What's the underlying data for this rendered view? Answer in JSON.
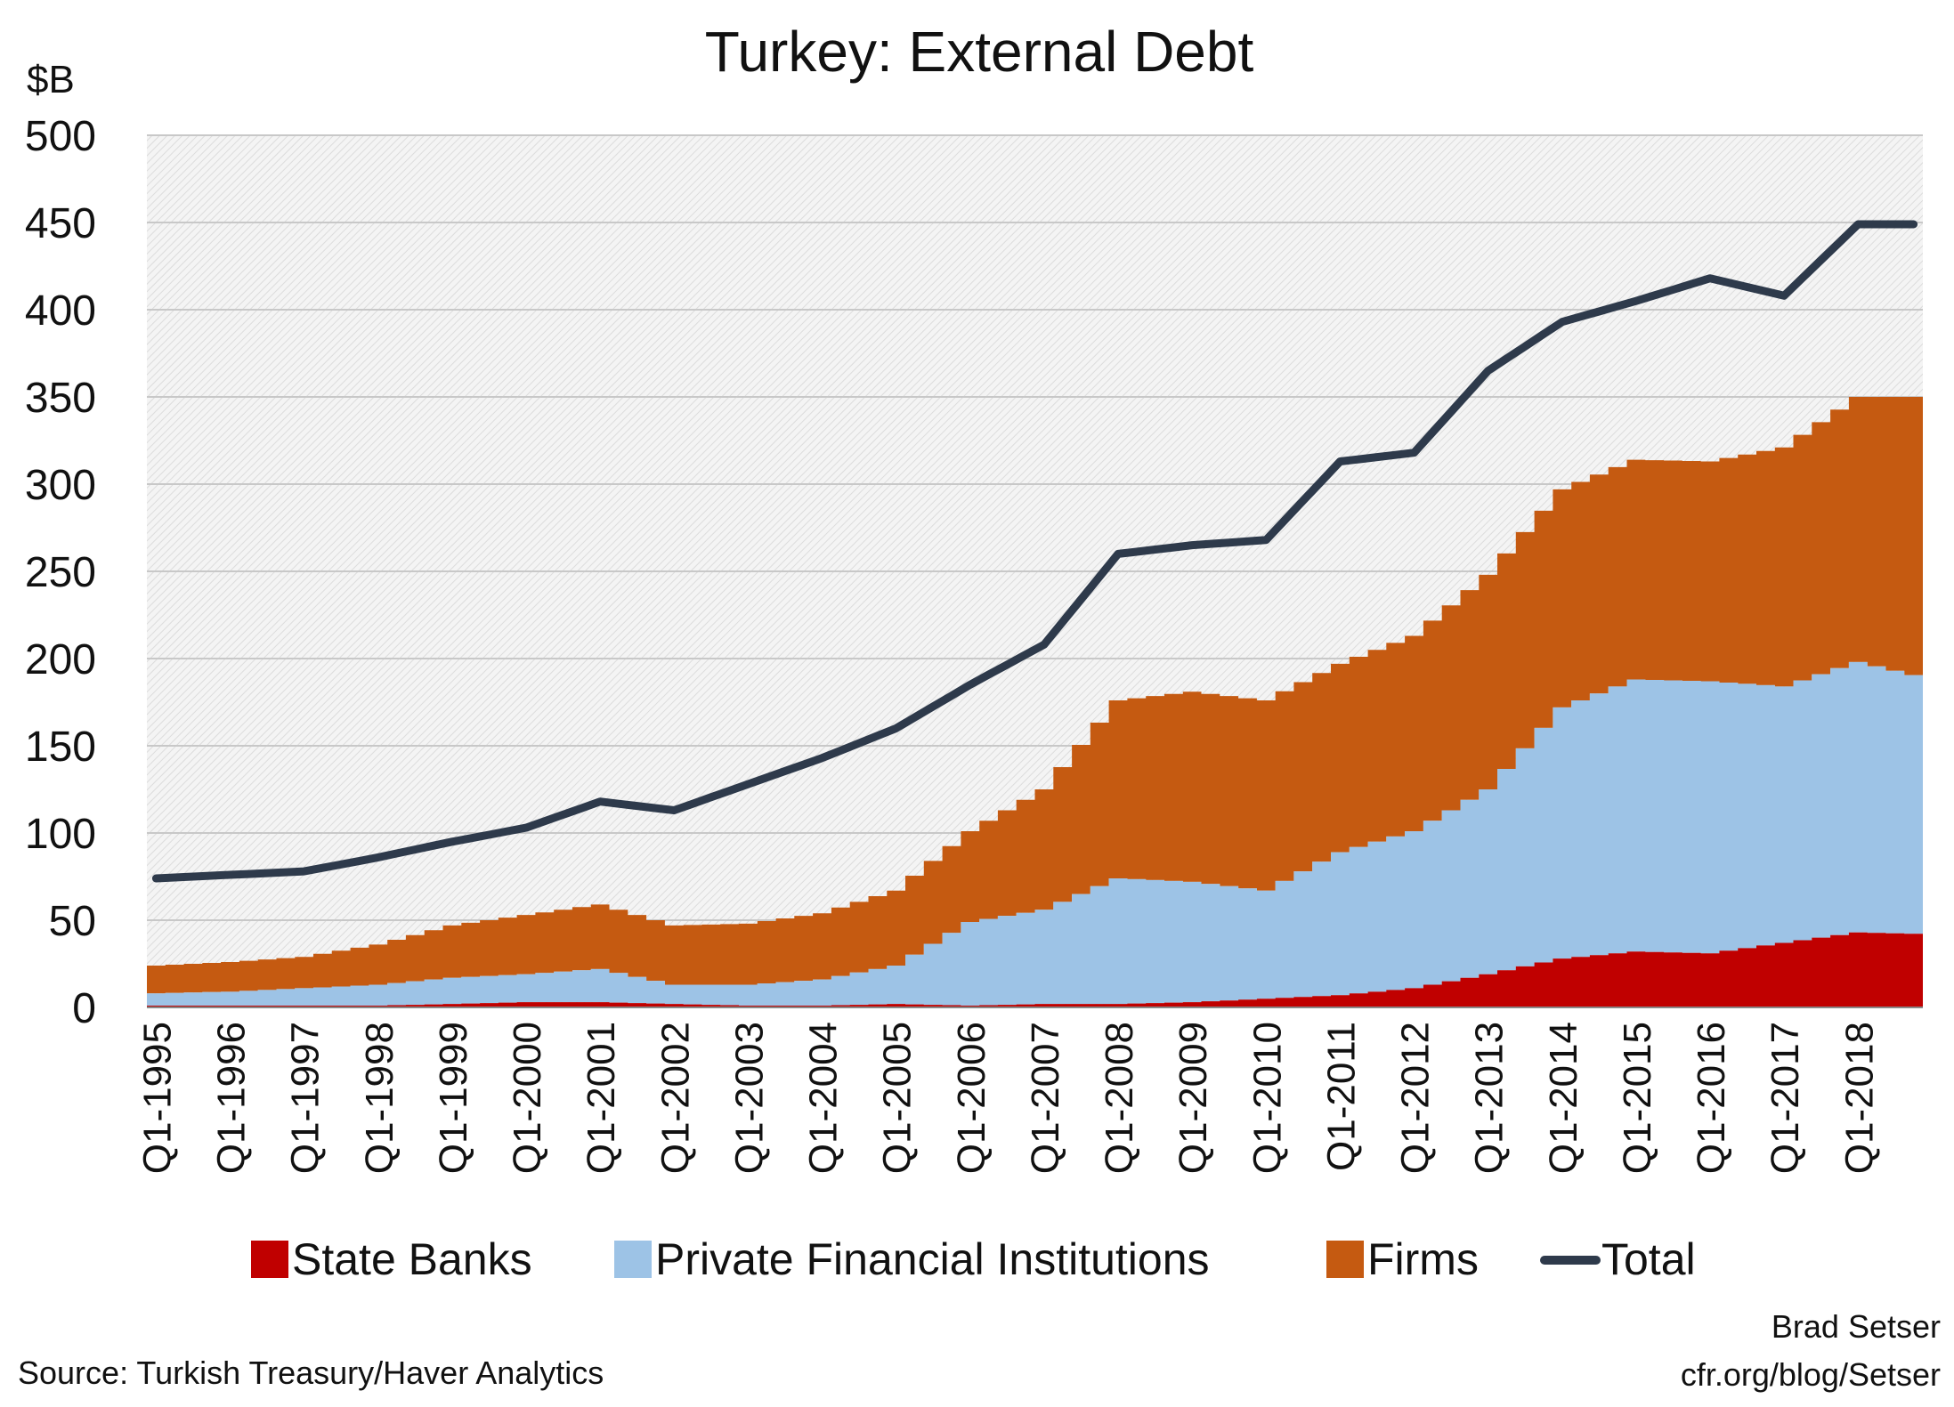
{
  "chart_data": {
    "type": "area",
    "title": "Turkey: External Debt",
    "ylabel": "$B",
    "xlabel": "",
    "ylim": [
      0,
      500
    ],
    "yticks": [
      0,
      50,
      100,
      150,
      200,
      250,
      300,
      350,
      400,
      450,
      500
    ],
    "grid": true,
    "legend_position": "bottom",
    "x_start": "Q1-1995",
    "x_end": "Q4-2018",
    "x_tick_labels": [
      "Q1-1995",
      "Q1-1996",
      "Q1-1997",
      "Q1-1998",
      "Q1-1999",
      "Q1-2000",
      "Q1-2001",
      "Q1-2002",
      "Q1-2003",
      "Q1-2004",
      "Q1-2005",
      "Q1-2006",
      "Q1-2007",
      "Q1-2008",
      "Q1-2009",
      "Q1-2010",
      "Q1-2011",
      "Q1-2012",
      "Q1-2013",
      "Q1-2014",
      "Q1-2015",
      "Q1-2016",
      "Q1-2017",
      "Q1-2018"
    ],
    "year_anchors": {
      "years": [
        1995,
        1996,
        1997,
        1998,
        1999,
        2000,
        2001,
        2002,
        2003,
        2004,
        2005,
        2006,
        2007,
        2008,
        2009,
        2010,
        2011,
        2012,
        2013,
        2014,
        2015,
        2016,
        2017,
        2018,
        2019
      ],
      "state_banks": [
        1,
        1,
        1,
        1,
        2,
        3,
        3,
        2,
        1,
        1,
        2,
        1,
        2,
        2,
        3,
        5,
        7,
        11,
        19,
        28,
        32,
        31,
        37,
        43,
        42
      ],
      "private_financial": [
        8,
        9,
        11,
        13,
        17,
        19,
        22,
        13,
        13,
        16,
        24,
        49,
        56,
        74,
        72,
        67,
        89,
        101,
        125,
        172,
        188,
        187,
        184,
        198,
        188
      ],
      "firms": [
        24,
        26,
        29,
        36,
        47,
        53,
        59,
        47,
        48,
        54,
        67,
        101,
        125,
        176,
        181,
        176,
        197,
        213,
        248,
        297,
        314,
        313,
        321,
        350,
        350
      ],
      "total": [
        74,
        76,
        78,
        86,
        95,
        103,
        118,
        113,
        128,
        143,
        160,
        185,
        208,
        260,
        265,
        268,
        313,
        318,
        365,
        393,
        405,
        418,
        408,
        449,
        449
      ]
    },
    "series": [
      {
        "name": "State Banks",
        "color": "#c00000",
        "style": "stacked-area"
      },
      {
        "name": "Private Financial Institutions",
        "color": "#9dc3e6",
        "style": "stacked-area"
      },
      {
        "name": "Firms",
        "color": "#c55a11",
        "style": "stacked-area"
      },
      {
        "name": "Total",
        "color": "#2e3a4b",
        "style": "line"
      }
    ],
    "legend": [
      "State Banks",
      "Private Financial Institutions",
      "Firms",
      "Total"
    ]
  },
  "source": "Source: Turkish Treasury/Haver Analytics",
  "credit_line1": "Brad Setser",
  "credit_line2": "cfr.org/blog/Setser"
}
